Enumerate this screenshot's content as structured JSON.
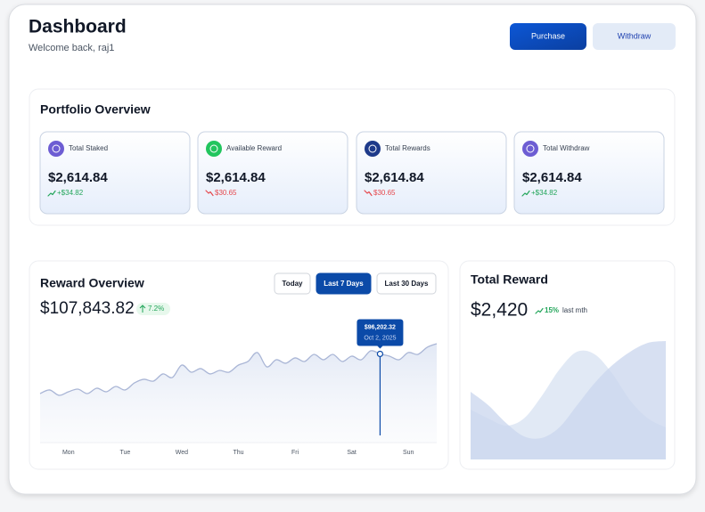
{
  "header": {
    "title": "Dashboard",
    "subtitle": "Welcome back, raj1",
    "buttons": [
      "Purchase",
      "Withdraw"
    ]
  },
  "portfolio": {
    "title": "Portfolio Overview",
    "cards": [
      {
        "label": "Total Staked",
        "value": "$2,614.84",
        "change": "+$34.82",
        "trend": "up"
      },
      {
        "label": "Available Reward",
        "value": "$2,614.84",
        "change": "$30.65",
        "trend": "down"
      },
      {
        "label": "Total Rewards",
        "value": "$2,614.84",
        "change": "$30.65",
        "trend": "down"
      },
      {
        "label": "Total Withdraw",
        "value": "$2,614.84",
        "change": "+$34.82",
        "trend": "up"
      }
    ]
  },
  "reward_overview": {
    "title": "Reward Overview",
    "filters": [
      {
        "label": "Today",
        "active": false
      },
      {
        "label": "Last 7 Days",
        "active": true
      },
      {
        "label": "Last 30 Days",
        "active": false
      }
    ],
    "total": "$107,843.82",
    "change": "7.2%",
    "chart": {
      "type": "line",
      "color": "#aab6d6",
      "categories": [
        null,
        null,
        null,
        "Mon",
        null,
        null,
        null,
        null,
        null,
        "Tue",
        null,
        null,
        null,
        null,
        null,
        "Wed",
        null,
        null,
        null,
        null,
        null,
        "Thu",
        null,
        null,
        null,
        null,
        null,
        "Fri",
        null,
        null,
        null,
        null,
        null,
        "Sat",
        null,
        null,
        null,
        null,
        null,
        "Sun",
        null,
        null,
        null
      ],
      "values": [
        53200,
        57100,
        51300,
        55100,
        58000,
        53200,
        59000,
        55100,
        60900,
        57100,
        64800,
        68700,
        66700,
        74500,
        70600,
        84100,
        76400,
        80300,
        74500,
        78300,
        76400,
        84100,
        88000,
        97700,
        82200,
        89900,
        86100,
        91900,
        88000,
        95700,
        89900,
        95700,
        88000,
        93800,
        89900,
        99600,
        96202.32,
        93800,
        89900,
        97700,
        95700,
        103500,
        107300
      ],
      "value_labels": [
        null,
        null,
        null,
        null,
        null,
        null,
        null,
        null,
        null,
        null,
        null,
        null,
        null,
        null,
        null,
        null,
        null,
        null,
        null,
        null,
        null,
        null,
        null,
        null,
        null,
        null,
        null,
        null,
        null,
        null,
        null,
        null,
        null,
        null,
        null,
        null,
        "$96,202.32",
        null,
        null,
        null,
        null,
        null,
        null
      ],
      "tooltip_date": "Oct 2, 2025",
      "ylim": [
        0,
        116000
      ]
    }
  },
  "total_reward": {
    "title": "Total Reward",
    "value": "$2,420",
    "change": "15%",
    "period": "last mth",
    "chart": {
      "type": "area",
      "categories": [
        null,
        null,
        null,
        null,
        null,
        null,
        null,
        null,
        null,
        null,
        null,
        null
      ],
      "series": [
        {
          "color": "#d7e1f2",
          "values": [
            33.7,
            27.7,
            22.9,
            27.7,
            42.8,
            60.8,
            72.9,
            71.1,
            57.8,
            39.8,
            27.7,
            21.7
          ]
        },
        {
          "color": "#c9d6ee",
          "values": [
            45.8,
            36.7,
            24.7,
            15.7,
            14.5,
            21.7,
            36.7,
            51.8,
            63.9,
            72.9,
            78.9,
            80.1
          ]
        }
      ],
      "ylim": [
        0,
        100
      ]
    }
  }
}
